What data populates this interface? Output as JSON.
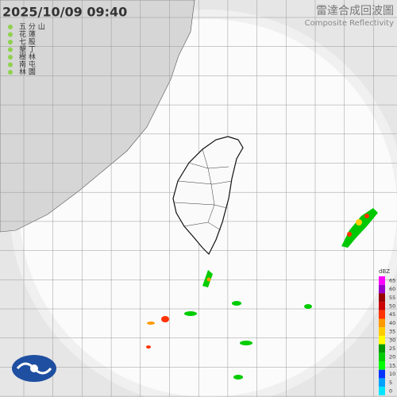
{
  "header": {
    "timestamp": "2025/10/09  09:40",
    "title": "雷達合成回波圖",
    "subtitle": "Composite Reflectivity"
  },
  "stations": [
    "五 分 山",
    "花 蓮",
    "七 股",
    "墾 丁",
    "樹 林",
    "南 屯",
    "林 園"
  ],
  "legend": {
    "unit": "dBZ",
    "levels": [
      65,
      60,
      55,
      50,
      45,
      40,
      35,
      30,
      25,
      20,
      15,
      10,
      5,
      0
    ],
    "colors": [
      "#ff00ff",
      "#9900cc",
      "#990000",
      "#cc0000",
      "#ff3300",
      "#ff9900",
      "#ffcc00",
      "#ffff00",
      "#009900",
      "#00cc00",
      "#00ff00",
      "#0033ff",
      "#00a2ff",
      "#00e6ff"
    ]
  }
}
